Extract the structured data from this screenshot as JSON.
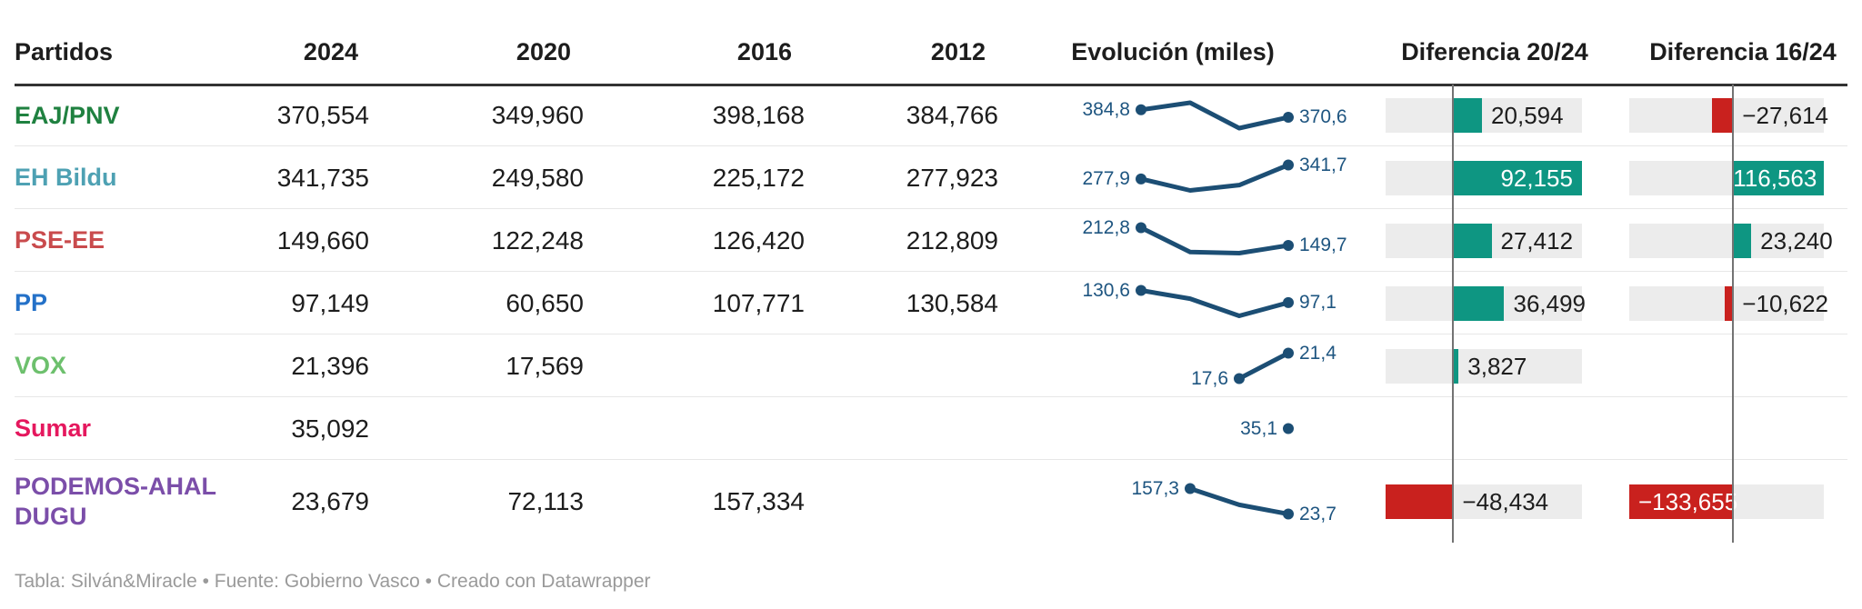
{
  "colors": {
    "positive_bar": "#0e9682",
    "negative_bar": "#c9211e",
    "bar_background": "#ececec",
    "sparkline": "#1c4e74",
    "spark_label": "#1e5580",
    "axis_line": "#737373",
    "header_rule": "#333333",
    "row_separator": "#e7e7e7",
    "text": "#1d1d1d",
    "footer_text": "#9a9a9a"
  },
  "chart_data": {
    "type": "table",
    "columns": [
      "Partidos",
      "2024",
      "2020",
      "2016",
      "2012",
      "Evolución (miles)",
      "Diferencia 20/24",
      "Diferencia 16/24"
    ],
    "evolution_unit": "miles",
    "rows": [
      {
        "party": "EAJ/PNV",
        "party_color": "#1f8140",
        "votes_display": {
          "y2024": "370,554",
          "y2020": "349,960",
          "y2016": "398,168",
          "y2012": "384,766"
        },
        "evolution": {
          "years": [
            2012,
            2016,
            2020,
            2024
          ],
          "values_miles": [
            384.8,
            398.2,
            350.0,
            370.6
          ],
          "start_label": "384,8",
          "end_label": "370,6"
        },
        "diff_20_24": {
          "value": 20594,
          "display": "20,594",
          "label_inside": false
        },
        "diff_16_24": {
          "value": -27614,
          "display": "−27,614",
          "label_inside": false
        }
      },
      {
        "party": "EH Bildu",
        "party_color": "#4ea1b3",
        "votes_display": {
          "y2024": "341,735",
          "y2020": "249,580",
          "y2016": "225,172",
          "y2012": "277,923"
        },
        "evolution": {
          "years": [
            2012,
            2016,
            2020,
            2024
          ],
          "values_miles": [
            277.9,
            225.2,
            249.6,
            341.7
          ],
          "start_label": "277,9",
          "end_label": "341,7"
        },
        "diff_20_24": {
          "value": 92155,
          "display": "92,155",
          "label_inside": true
        },
        "diff_16_24": {
          "value": 116563,
          "display": "116,563",
          "label_inside": true
        }
      },
      {
        "party": "PSE-EE",
        "party_color": "#c94b4d",
        "votes_display": {
          "y2024": "149,660",
          "y2020": "122,248",
          "y2016": "126,420",
          "y2012": "212,809"
        },
        "evolution": {
          "years": [
            2012,
            2016,
            2020,
            2024
          ],
          "values_miles": [
            212.8,
            126.4,
            122.2,
            149.7
          ],
          "start_label": "212,8",
          "end_label": "149,7"
        },
        "diff_20_24": {
          "value": 27412,
          "display": "27,412",
          "label_inside": false
        },
        "diff_16_24": {
          "value": 23240,
          "display": "23,240",
          "label_inside": false
        }
      },
      {
        "party": "PP",
        "party_color": "#2471c8",
        "votes_display": {
          "y2024": "97,149",
          "y2020": "60,650",
          "y2016": "107,771",
          "y2012": "130,584"
        },
        "evolution": {
          "years": [
            2012,
            2016,
            2020,
            2024
          ],
          "values_miles": [
            130.6,
            107.8,
            60.7,
            97.1
          ],
          "start_label": "130,6",
          "end_label": "97,1"
        },
        "diff_20_24": {
          "value": 36499,
          "display": "36,499",
          "label_inside": false
        },
        "diff_16_24": {
          "value": -10622,
          "display": "−10,622",
          "label_inside": false
        }
      },
      {
        "party": "VOX",
        "party_color": "#6dc06d",
        "votes_display": {
          "y2024": "21,396",
          "y2020": "17,569",
          "y2016": "",
          "y2012": ""
        },
        "evolution": {
          "years": [
            2020,
            2024
          ],
          "values_miles": [
            17.6,
            21.4
          ],
          "start_label": "17,6",
          "end_label": "21,4"
        },
        "diff_20_24": {
          "value": 3827,
          "display": "3,827",
          "label_inside": false
        },
        "diff_16_24": null
      },
      {
        "party": "Sumar",
        "party_color": "#e5185e",
        "votes_display": {
          "y2024": "35,092",
          "y2020": "",
          "y2016": "",
          "y2012": ""
        },
        "evolution": {
          "years": [
            2024
          ],
          "values_miles": [
            35.1
          ],
          "start_label": "35,1",
          "end_label": null
        },
        "diff_20_24": null,
        "diff_16_24": null
      },
      {
        "party": "PODEMOS-AHAL DUGU",
        "party_color": "#7b4ea9",
        "votes_display": {
          "y2024": "23,679",
          "y2020": "72,113",
          "y2016": "157,334",
          "y2012": ""
        },
        "evolution": {
          "years": [
            2016,
            2020,
            2024
          ],
          "values_miles": [
            157.3,
            72.1,
            23.7
          ],
          "start_label": "157,3",
          "end_label": "23,7"
        },
        "diff_20_24": {
          "value": -48434,
          "display": "−48,434",
          "label_inside": false
        },
        "diff_16_24": {
          "value": -133655,
          "display": "−133,655",
          "label_inside": true
        }
      }
    ]
  },
  "footer": {
    "text": "Tabla: Silván&Miracle • Fuente: Gobierno Vasco • Creado con Datawrapper"
  }
}
